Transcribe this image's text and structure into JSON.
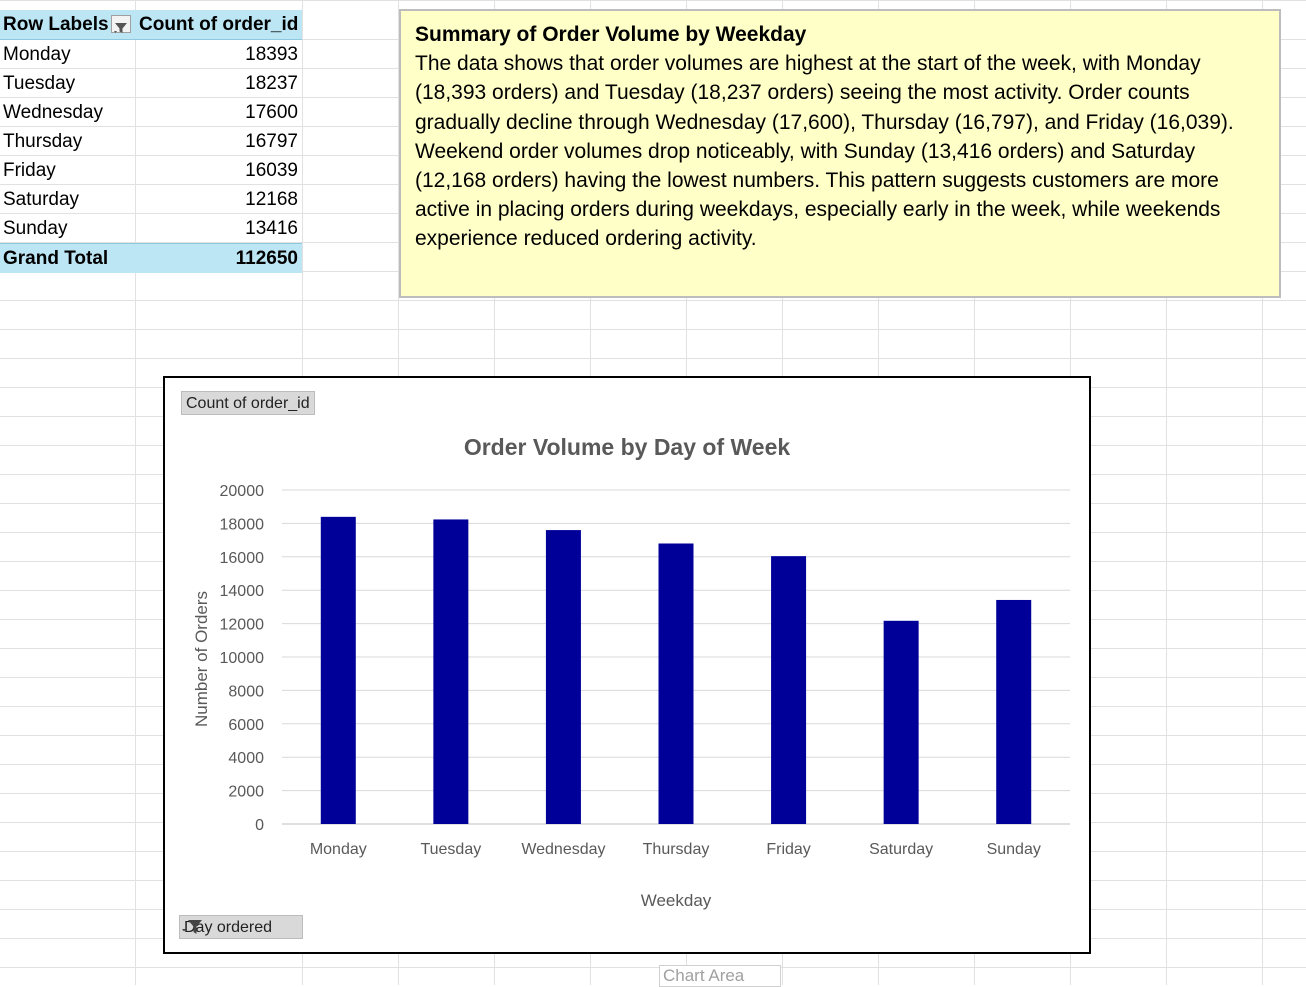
{
  "pivot": {
    "header": {
      "row_labels": "Row Labels",
      "value_field": "Count of order_id"
    },
    "rows": [
      {
        "label": "Monday",
        "value": "18393"
      },
      {
        "label": "Tuesday",
        "value": "18237"
      },
      {
        "label": "Wednesday",
        "value": "17600"
      },
      {
        "label": "Thursday",
        "value": "16797"
      },
      {
        "label": "Friday",
        "value": "16039"
      },
      {
        "label": "Saturday",
        "value": "12168"
      },
      {
        "label": "Sunday",
        "value": "13416"
      }
    ],
    "total": {
      "label": "Grand Total",
      "value": "112650"
    }
  },
  "summary": {
    "title": "Summary of Order Volume by Weekday",
    "body": "The data shows that order volumes are highest at the start of the week, with Monday (18,393 orders) and Tuesday (18,237 orders) seeing the most activity. Order counts gradually decline through Wednesday (17,600), Thursday (16,797), and Friday (16,039). Weekend order volumes drop noticeably, with Sunday (13,416 orders) and Saturday (12,168 orders) having the lowest numbers. This pattern suggests customers are more active in placing orders during weekdays, especially early in the week, while weekends experience reduced ordering activity."
  },
  "chart_buttons": {
    "value_field": "Count of order_id",
    "axis_field": "Day ordered"
  },
  "chart_area_tooltip": "Chart Area",
  "chart_data": {
    "type": "bar",
    "title": "Order Volume by Day of Week",
    "xlabel": "Weekday",
    "ylabel": "Number of Orders",
    "categories": [
      "Monday",
      "Tuesday",
      "Wednesday",
      "Thursday",
      "Friday",
      "Saturday",
      "Sunday"
    ],
    "values": [
      18393,
      18237,
      17600,
      16797,
      16039,
      12168,
      13416
    ],
    "ylim": [
      0,
      20000
    ],
    "yticks": [
      0,
      2000,
      4000,
      6000,
      8000,
      10000,
      12000,
      14000,
      16000,
      18000,
      20000
    ],
    "bar_color": "#000099",
    "grid": true,
    "legend": "none"
  }
}
